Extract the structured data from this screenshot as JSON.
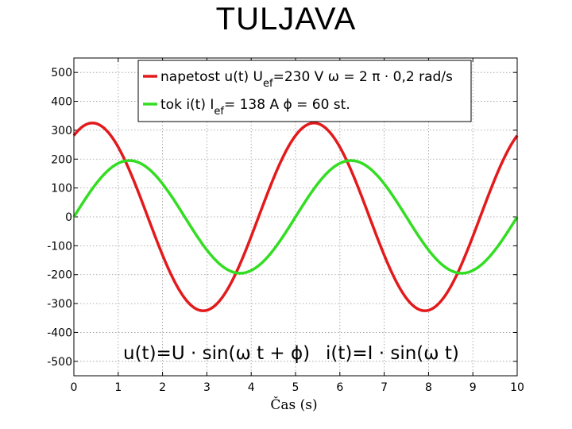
{
  "page": {
    "title": "TULJAVA"
  },
  "chart_data": {
    "type": "line",
    "xlabel": "Čas (s)",
    "ylabel": "",
    "xlim": [
      0,
      10
    ],
    "ylim": [
      -550,
      550
    ],
    "xticks": [
      "0",
      "1",
      "2",
      "3",
      "4",
      "5",
      "6",
      "7",
      "8",
      "9",
      "10"
    ],
    "yticks": [
      "500",
      "400",
      "300",
      "200",
      "100",
      "0",
      "-100",
      "-200",
      "-300",
      "-400",
      "-500"
    ],
    "grid": true,
    "legend_position": "top-right",
    "colors": {
      "voltage": "#e31a1c",
      "current": "#33dd22"
    },
    "series": [
      {
        "key": "voltage",
        "amplitude": 325,
        "frequency_hz": 0.2,
        "phase_deg": 60,
        "legend": {
          "main": "napetost u(t) U",
          "sub": "ef",
          "rest": "=230 V  ω = 2 π · 0,2 rad/s"
        }
      },
      {
        "key": "current",
        "amplitude": 195,
        "frequency_hz": 0.2,
        "phase_deg": 0,
        "legend": {
          "main": "tok i(t) I",
          "sub": "ef",
          "rest": "= 138 A  ϕ = 60 st."
        }
      }
    ],
    "annotations": {
      "formula_left": "u(t)=U · sin(ω t + ϕ)",
      "formula_right": "i(t)=I · sin(ω t)"
    }
  }
}
